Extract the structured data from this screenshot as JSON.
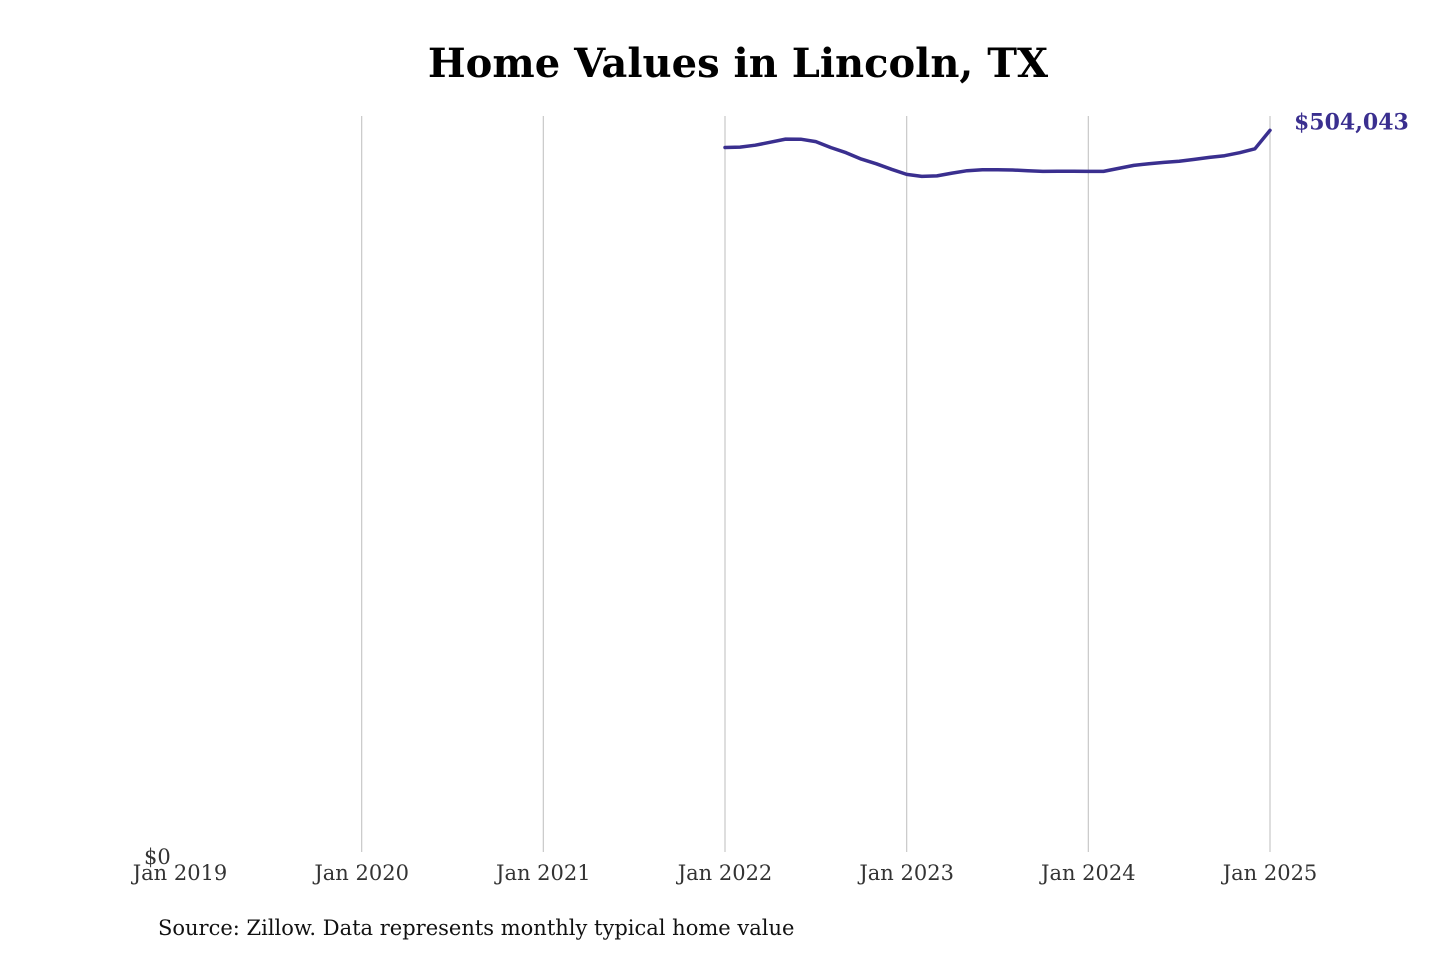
{
  "chart_data": {
    "type": "line",
    "title": "Home Values in Lincoln, TX",
    "source": "Source: Zillow. Data represents monthly typical home value",
    "xlabel": "",
    "ylabel": "",
    "x_ticks": [
      "Jan 2019",
      "Jan 2020",
      "Jan 2021",
      "Jan 2022",
      "Jan 2023",
      "Jan 2024",
      "Jan 2025"
    ],
    "x_range": [
      "2019-01",
      "2025-01"
    ],
    "y_tick_labels": [
      "$0"
    ],
    "ylim": [
      0,
      514000
    ],
    "grid": "vertical gridlines at x ticks",
    "line_color": "#3a2f8f",
    "end_label": "$504,043",
    "series": [
      {
        "x": [
          "2022-01",
          "2022-02",
          "2022-03",
          "2022-04",
          "2022-05",
          "2022-06",
          "2022-07",
          "2022-08",
          "2022-09",
          "2022-10",
          "2022-11",
          "2022-12",
          "2023-01",
          "2023-02",
          "2023-03",
          "2023-04",
          "2023-05",
          "2023-06",
          "2023-07",
          "2023-08",
          "2023-09",
          "2023-10",
          "2023-11",
          "2023-12",
          "2024-01",
          "2024-02",
          "2024-03",
          "2024-04",
          "2024-05",
          "2024-06",
          "2024-07",
          "2024-08",
          "2024-09",
          "2024-10",
          "2024-11",
          "2024-12",
          "2025-01"
        ],
        "values": [
          492000,
          492300,
          493600,
          495700,
          497900,
          497800,
          496100,
          491900,
          488400,
          483900,
          480600,
          476800,
          473200,
          471800,
          472200,
          474100,
          475800,
          476500,
          476500,
          476300,
          475700,
          475300,
          475400,
          475400,
          475300,
          475300,
          477400,
          479500,
          480700,
          481600,
          482400,
          483700,
          485100,
          486300,
          488400,
          491100,
          504043
        ]
      }
    ]
  }
}
